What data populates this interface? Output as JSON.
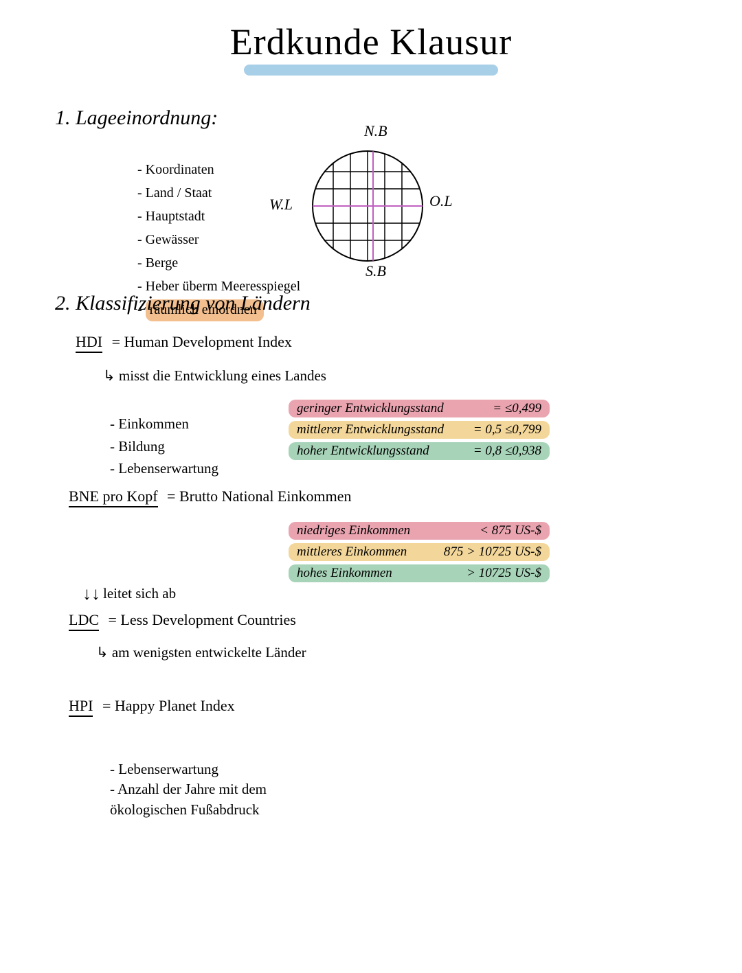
{
  "colors": {
    "title_underline": "#a8cfe8",
    "hl_orange": "#f3bf8f",
    "hl_pink": "#e9a4b0",
    "hl_yellow": "#f3d79a",
    "hl_green": "#a7d3b8",
    "globe_stroke": "#000000",
    "globe_equator": "#c060c0",
    "globe_meridian": "#c060c0"
  },
  "title": "Erdkunde Klausur",
  "section1": {
    "heading": "1. Lageeinordnung:",
    "bullets": [
      "Koordinaten",
      "Land / Staat",
      "Hauptstadt",
      "Gewässer",
      "Berge",
      "Heber überm Meeresspiegel"
    ],
    "bullet_highlight": "räumlich einordnen",
    "globe_labels": {
      "n": "N.B",
      "s": "S.B",
      "w": "W.L",
      "e": "O.L"
    }
  },
  "section2": {
    "heading": "2. Klassifizierung von Ländern",
    "hdi": {
      "term": "HDI",
      "def": "= Human Development Index",
      "sub": "misst die Entwicklung eines Landes",
      "bullets": [
        "Einkommen",
        "Bildung",
        "Lebenserwartung"
      ],
      "scale": [
        {
          "label": "geringer Entwicklungsstand",
          "value": "= ≤0,499",
          "color_key": "hl_pink"
        },
        {
          "label": "mittlerer Entwicklungsstand",
          "value": "= 0,5 ≤0,799",
          "color_key": "hl_yellow"
        },
        {
          "label": "hoher Entwicklungsstand",
          "value": "= 0,8 ≤0,938",
          "color_key": "hl_green"
        }
      ]
    },
    "bne": {
      "term": "BNE pro Kopf",
      "def": "= Brutto National Einkommen",
      "scale": [
        {
          "label": "niedriges Einkommen",
          "value": "< 875 US-$",
          "color_key": "hl_pink"
        },
        {
          "label": "mittleres Einkommen",
          "value": "875 > 10725 US-$",
          "color_key": "hl_yellow"
        },
        {
          "label": "hohes Einkommen",
          "value": "> 10725 US-$",
          "color_key": "hl_green"
        }
      ],
      "derive": "leitet sich ab"
    },
    "ldc": {
      "term": "LDC",
      "def": "= Less Development Countries",
      "sub": "am wenigsten entwickelte Länder"
    },
    "hpi": {
      "term": "HPI",
      "def": "= Happy Planet Index",
      "bullets": [
        "Lebenserwartung",
        "Anzahl der Jahre mit dem ökologischen Fußabdruck"
      ]
    }
  }
}
